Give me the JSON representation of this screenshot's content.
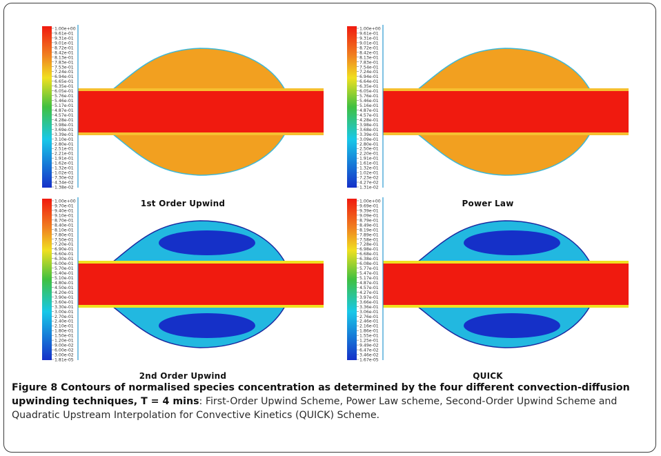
{
  "figure": {
    "panels": [
      {
        "label": "1st Order Upwind",
        "scale_ticks": [
          "1.00e+00",
          "9.61e-01",
          "9.31e-01",
          "9.01e-01",
          "8.72e-01",
          "8.42e-01",
          "8.13e-01",
          "7.83e-01",
          "7.53e-01",
          "7.24e-01",
          "6.94e-01",
          "6.65e-01",
          "6.35e-01",
          "6.05e-01",
          "5.76e-01",
          "5.46e-01",
          "5.17e-01",
          "4.87e-01",
          "4.57e-01",
          "4.28e-01",
          "3.98e-01",
          "3.69e-01",
          "3.39e-01",
          "3.10e-01",
          "2.80e-01",
          "2.51e-01",
          "2.21e-01",
          "1.91e-01",
          "1.62e-01",
          "1.32e-01",
          "1.02e-01",
          "7.30e-02",
          "4.34e-02",
          "1.38e-02"
        ],
        "bulge_fill": "orange"
      },
      {
        "label": "Power Law",
        "scale_ticks": [
          "1.00e+00",
          "9.61e-01",
          "9.31e-01",
          "9.01e-01",
          "8.72e-01",
          "8.42e-01",
          "8.13e-01",
          "7.83e-01",
          "7.54e-01",
          "7.24e-01",
          "6.94e-01",
          "6.64e-01",
          "6.35e-01",
          "6.05e-01",
          "5.76e-01",
          "5.46e-01",
          "5.16e-01",
          "4.87e-01",
          "4.57e-01",
          "4.28e-01",
          "3.98e-01",
          "3.68e-01",
          "3.39e-01",
          "3.09e-01",
          "2.80e-01",
          "2.50e-01",
          "2.20e-01",
          "1.91e-01",
          "1.61e-01",
          "1.32e-01",
          "1.02e-01",
          "7.23e-02",
          "4.27e-02",
          "1.31e-02"
        ],
        "bulge_fill": "orange"
      },
      {
        "label": "2nd Order Upwind",
        "scale_ticks": [
          "1.00e+00",
          "9.70e-01",
          "9.40e-01",
          "9.10e-01",
          "8.70e-01",
          "8.40e-01",
          "8.10e-01",
          "7.80e-01",
          "7.50e-01",
          "7.20e-01",
          "6.90e-01",
          "6.60e-01",
          "6.30e-01",
          "6.00e-01",
          "5.70e-01",
          "5.40e-01",
          "5.10e-01",
          "4.80e-01",
          "4.50e-01",
          "4.20e-01",
          "3.90e-01",
          "3.60e-01",
          "3.30e-01",
          "3.00e-01",
          "2.70e-01",
          "2.40e-01",
          "2.10e-01",
          "1.80e-01",
          "1.50e-01",
          "1.20e-01",
          "9.00e-02",
          "6.00e-02",
          "3.00e-02",
          "1.81e-05"
        ],
        "bulge_fill": "blue"
      },
      {
        "label": "QUICK",
        "scale_ticks": [
          "1.00e+00",
          "9.69e-01",
          "9.39e-01",
          "9.09e-01",
          "8.79e-01",
          "8.49e-01",
          "8.19e-01",
          "7.89e-01",
          "7.58e-01",
          "7.28e-01",
          "6.98e-01",
          "6.68e-01",
          "6.38e-01",
          "6.08e-01",
          "5.77e-01",
          "5.47e-01",
          "5.17e-01",
          "4.87e-01",
          "4.57e-01",
          "4.27e-01",
          "3.97e-01",
          "3.66e-01",
          "3.36e-01",
          "3.06e-01",
          "2.76e-01",
          "2.46e-01",
          "2.16e-01",
          "1.86e-01",
          "1.55e-01",
          "1.25e-01",
          "9.49e-02",
          "6.47e-02",
          "3.46e-02",
          "1.67e-05"
        ],
        "bulge_fill": "blue"
      }
    ]
  },
  "caption": {
    "title": "Figure 8 Contours of normalised species concentration as determined by the four different convection-diffusion upwinding techniques, T = 4 mins",
    "body": ": First-Order Upwind Scheme, Power Law scheme, Second-Order Upwind Scheme and Quadratic Upstream Interpolation for Convective Kinetics (QUICK) Scheme."
  },
  "colors": {
    "core": "#f01a0f",
    "orange_fill": "#f2a020",
    "blue_deep": "#1530c8",
    "cyan": "#18c8e8",
    "green": "#40c040",
    "yellow": "#f0e020"
  }
}
